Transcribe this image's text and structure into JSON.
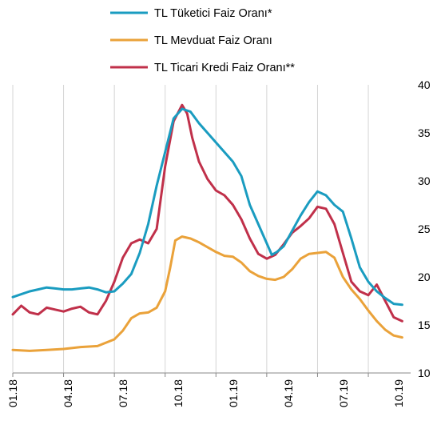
{
  "chart_data": {
    "type": "line",
    "title": "",
    "xlabel": "",
    "ylabel": "",
    "ylim": [
      10,
      40
    ],
    "y_ticks": [
      10,
      15,
      20,
      25,
      30,
      35,
      40
    ],
    "y_axis_side": "right",
    "x_range": [
      0,
      23.5
    ],
    "x_tick_positions": [
      0,
      3,
      6,
      9,
      12,
      15,
      18,
      21
    ],
    "x_tick_labels": [
      "01.18",
      "04.18",
      "07.18",
      "10.18",
      "01.19",
      "04.19",
      "07.19",
      "10.19"
    ],
    "grid": "vertical",
    "legend_position": "top",
    "series": [
      {
        "name": "TL Tüketici Faiz Oranı*",
        "color": "#1a9cc0",
        "points": [
          [
            0,
            17.9
          ],
          [
            0.5,
            18.2
          ],
          [
            1,
            18.5
          ],
          [
            1.5,
            18.7
          ],
          [
            2,
            18.9
          ],
          [
            2.5,
            18.8
          ],
          [
            3,
            18.7
          ],
          [
            3.5,
            18.7
          ],
          [
            4,
            18.8
          ],
          [
            4.5,
            18.9
          ],
          [
            5,
            18.7
          ],
          [
            5.5,
            18.4
          ],
          [
            6,
            18.5
          ],
          [
            6.5,
            19.3
          ],
          [
            7,
            20.3
          ],
          [
            7.5,
            22.5
          ],
          [
            8,
            25.5
          ],
          [
            8.5,
            29.5
          ],
          [
            9,
            33
          ],
          [
            9.5,
            36.5
          ],
          [
            10,
            37.5
          ],
          [
            10.5,
            37.2
          ],
          [
            11,
            36
          ],
          [
            11.5,
            35
          ],
          [
            12,
            34
          ],
          [
            12.5,
            33
          ],
          [
            13,
            32
          ],
          [
            13.5,
            30.5
          ],
          [
            14,
            27.5
          ],
          [
            14.5,
            25.5
          ],
          [
            15,
            23.5
          ],
          [
            15.3,
            22.3
          ],
          [
            15.6,
            22.6
          ],
          [
            16,
            23.2
          ],
          [
            16.5,
            24.8
          ],
          [
            17,
            26.4
          ],
          [
            17.5,
            27.8
          ],
          [
            18,
            28.9
          ],
          [
            18.5,
            28.5
          ],
          [
            19,
            27.5
          ],
          [
            19.5,
            26.8
          ],
          [
            20,
            24
          ],
          [
            20.5,
            21
          ],
          [
            21,
            19.5
          ],
          [
            21.5,
            18.5
          ],
          [
            22,
            17.8
          ],
          [
            22.5,
            17.2
          ],
          [
            23,
            17.1
          ]
        ]
      },
      {
        "name": "TL Mevduat Faiz Oranı",
        "color": "#eaa23a",
        "points": [
          [
            0,
            12.4
          ],
          [
            1,
            12.3
          ],
          [
            2,
            12.4
          ],
          [
            3,
            12.5
          ],
          [
            4,
            12.7
          ],
          [
            5,
            12.8
          ],
          [
            6,
            13.5
          ],
          [
            6.5,
            14.4
          ],
          [
            7,
            15.7
          ],
          [
            7.5,
            16.2
          ],
          [
            8,
            16.3
          ],
          [
            8.5,
            16.8
          ],
          [
            9,
            18.5
          ],
          [
            9.3,
            21
          ],
          [
            9.6,
            23.8
          ],
          [
            10,
            24.2
          ],
          [
            10.5,
            24
          ],
          [
            11,
            23.6
          ],
          [
            11.5,
            23.1
          ],
          [
            12,
            22.6
          ],
          [
            12.5,
            22.2
          ],
          [
            13,
            22.1
          ],
          [
            13.5,
            21.5
          ],
          [
            14,
            20.6
          ],
          [
            14.5,
            20.1
          ],
          [
            15,
            19.8
          ],
          [
            15.5,
            19.7
          ],
          [
            16,
            20
          ],
          [
            16.5,
            20.8
          ],
          [
            17,
            21.9
          ],
          [
            17.5,
            22.4
          ],
          [
            18,
            22.5
          ],
          [
            18.5,
            22.6
          ],
          [
            19,
            22
          ],
          [
            19.5,
            20
          ],
          [
            20,
            18.7
          ],
          [
            20.5,
            17.7
          ],
          [
            21,
            16.5
          ],
          [
            21.5,
            15.4
          ],
          [
            22,
            14.5
          ],
          [
            22.5,
            13.9
          ],
          [
            23,
            13.7
          ]
        ]
      },
      {
        "name": "TL Ticari Kredi Faiz Oranı**",
        "color": "#c0304a",
        "points": [
          [
            0,
            16.1
          ],
          [
            0.5,
            17
          ],
          [
            1,
            16.3
          ],
          [
            1.5,
            16.1
          ],
          [
            2,
            16.8
          ],
          [
            2.5,
            16.6
          ],
          [
            3,
            16.4
          ],
          [
            3.5,
            16.7
          ],
          [
            4,
            16.9
          ],
          [
            4.5,
            16.3
          ],
          [
            5,
            16.1
          ],
          [
            5.5,
            17.5
          ],
          [
            6,
            19.5
          ],
          [
            6.5,
            22
          ],
          [
            7,
            23.5
          ],
          [
            7.5,
            23.9
          ],
          [
            8,
            23.5
          ],
          [
            8.5,
            25
          ],
          [
            9,
            31.5
          ],
          [
            9.5,
            36.2
          ],
          [
            10,
            37.9
          ],
          [
            10.3,
            37
          ],
          [
            10.6,
            34.5
          ],
          [
            11,
            32
          ],
          [
            11.5,
            30.2
          ],
          [
            12,
            29
          ],
          [
            12.5,
            28.5
          ],
          [
            13,
            27.5
          ],
          [
            13.5,
            26
          ],
          [
            14,
            24
          ],
          [
            14.5,
            22.4
          ],
          [
            15,
            21.9
          ],
          [
            15.5,
            22.3
          ],
          [
            16,
            23.4
          ],
          [
            16.5,
            24.6
          ],
          [
            17,
            25.3
          ],
          [
            17.5,
            26.1
          ],
          [
            18,
            27.3
          ],
          [
            18.5,
            27.1
          ],
          [
            19,
            25.5
          ],
          [
            19.5,
            22.5
          ],
          [
            20,
            19.5
          ],
          [
            20.5,
            18.5
          ],
          [
            21,
            18.1
          ],
          [
            21.5,
            19.2
          ],
          [
            22,
            17.5
          ],
          [
            22.5,
            15.8
          ],
          [
            23,
            15.4
          ]
        ]
      }
    ]
  }
}
